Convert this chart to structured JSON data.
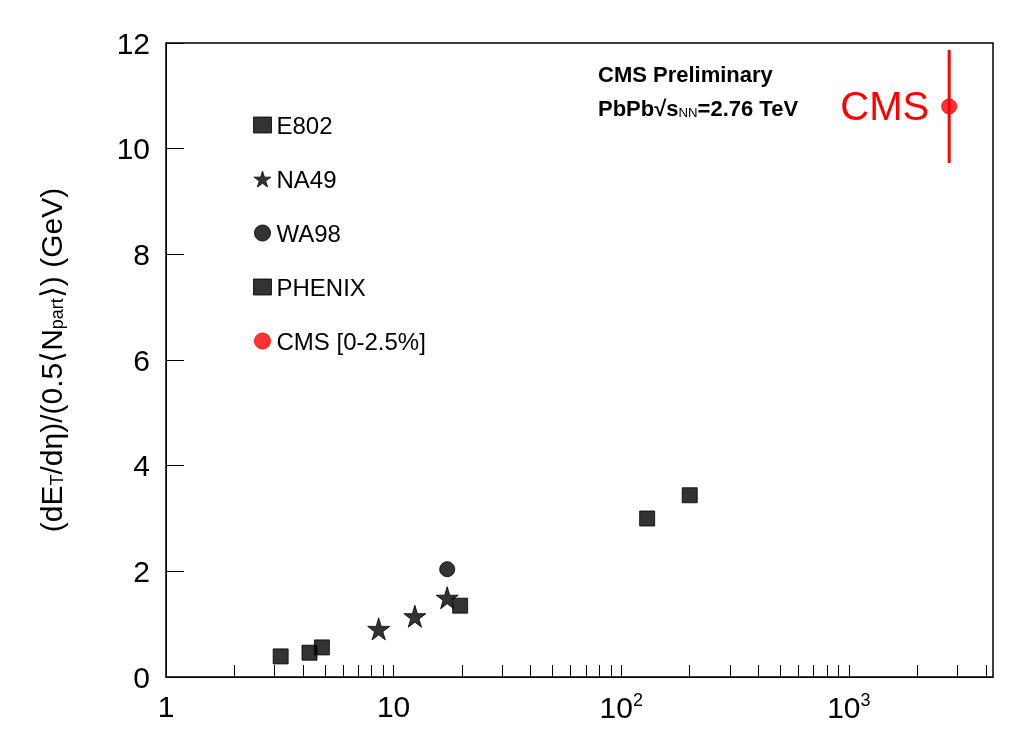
{
  "chart_data": {
    "type": "scatter",
    "ylabel": "(dE$_{T}$/dη)/(0.5⟨N$_{part}$⟩) (GeV)",
    "annotations": [
      "CMS Preliminary",
      "PbPb√s$_{NN}$=2.76 TeV",
      {
        "text": "CMS",
        "x": 2760,
        "y": 10.8
      }
    ],
    "log": "x",
    "xlim": [
      1,
      4300
    ],
    "xticks": [
      1,
      10,
      {
        "value": 100,
        "label": "10$^{2}$"
      },
      {
        "value": 1000,
        "label": "10$^{3}$"
      }
    ],
    "ylim": [
      0,
      12
    ],
    "yticks": [
      0,
      2,
      4,
      6,
      8,
      10,
      12
    ],
    "grid": false,
    "legend": "top left",
    "series": [
      {
        "name": "E802",
        "color": "#000000",
        "marker": "square",
        "x": [
          3.19,
          4.27,
          4.84
        ],
        "values": [
          0.39,
          0.46,
          0.56
        ]
      },
      {
        "name": "NA49",
        "color": "#000000",
        "marker": "star",
        "x": [
          8.6,
          12.4,
          17.2
        ],
        "values": [
          0.91,
          1.15,
          1.5
        ]
      },
      {
        "name": "WA98",
        "color": "#000000",
        "marker": "circle",
        "x": [
          17.2
        ],
        "values": [
          2.04
        ]
      },
      {
        "name": "PHENIX",
        "color": "#000000",
        "marker": "square",
        "x": [
          19.6,
          130,
          200
        ],
        "values": [
          1.35,
          3.0,
          3.44
        ]
      },
      {
        "name": "CMS [0-2.5%]",
        "color": "#ff0000",
        "marker": "circle",
        "x": [
          2760
        ],
        "values": [
          10.8
        ],
        "errors": [
          1.07
        ]
      }
    ]
  }
}
